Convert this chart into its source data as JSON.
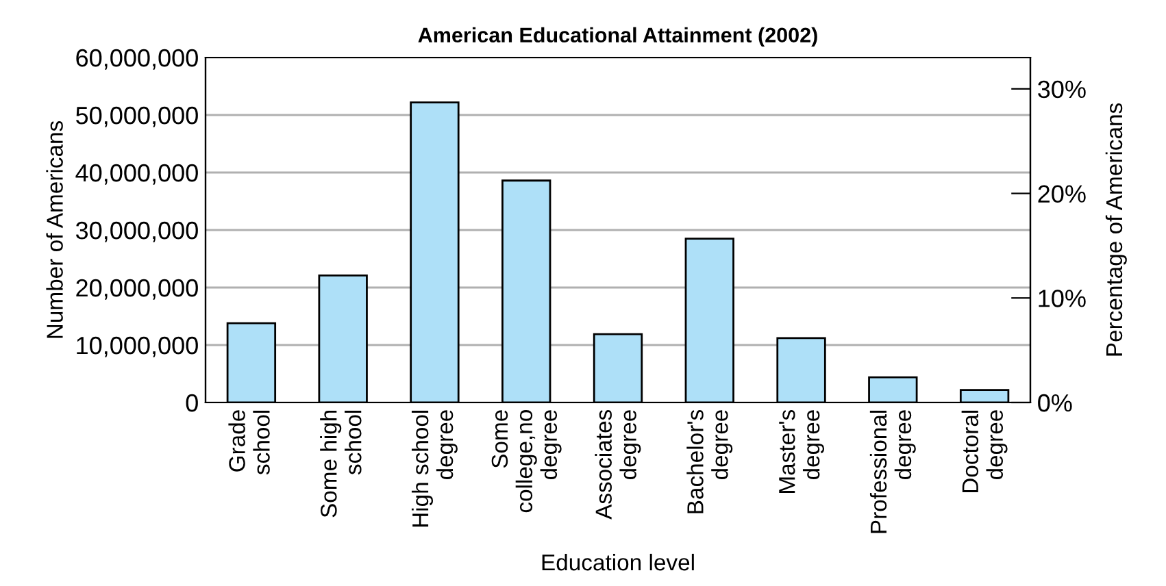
{
  "chart_data": {
    "type": "bar",
    "title": "American Educational Attainment (2002)",
    "xlabel": "Education level",
    "ylabel": "Number of Americans",
    "y2label": "Percentage of Americans",
    "categories": [
      "Grade\nschool",
      "Some high\nschool",
      "High school\ndegree",
      "Some\ncollege,no\ndegree",
      "Associates\ndegree",
      "Bachelor's\ndegree",
      "Master's\ndegree",
      "Professional\ndegree",
      "Doctoral\ndegree"
    ],
    "series": [
      {
        "color": "#aee0f8",
        "values": [
          13800000,
          22100000,
          52200000,
          38600000,
          11900000,
          28500000,
          11200000,
          4400000,
          2200000
        ]
      }
    ],
    "ylim": [
      0,
      60000000
    ],
    "yticks": [
      {
        "value": 0,
        "label": "0"
      },
      {
        "value": 10000000,
        "label": "10,000,000"
      },
      {
        "value": 20000000,
        "label": "20,000,000"
      },
      {
        "value": 30000000,
        "label": "30,000,000"
      },
      {
        "value": 40000000,
        "label": "40,000,000"
      },
      {
        "value": 50000000,
        "label": "50,000,000"
      },
      {
        "value": 60000000,
        "label": "60,000,000"
      }
    ],
    "y2lim": [
      0,
      33
    ],
    "y2ticks": [
      {
        "value": 0,
        "label": "0%"
      },
      {
        "value": 10,
        "label": "10%"
      },
      {
        "value": 20,
        "label": "20%"
      },
      {
        "value": 30,
        "label": "30%"
      }
    ],
    "grid": "y"
  }
}
